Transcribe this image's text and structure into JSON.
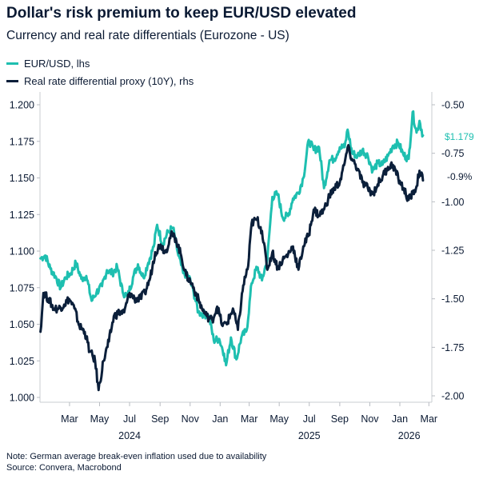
{
  "header": {
    "title": "Dollar's risk premium to keep EUR/USD elevated",
    "subtitle": "Currency and real rate differentials (Eurozone - US)"
  },
  "legend": [
    {
      "label": "EUR/USD, lhs",
      "color": "#1ebfb0"
    },
    {
      "label": "Real rate differential proxy (10Y), rhs",
      "color": "#0b1f3a"
    }
  ],
  "footer": {
    "note": "Note: German average break-even inflation used due to availability",
    "source": "Source: Convera, Macrobond"
  },
  "chart_data": {
    "type": "line",
    "left_axis": {
      "ticks": [
        "1.200",
        "1.175",
        "1.150",
        "1.125",
        "1.100",
        "1.075",
        "1.050",
        "1.025",
        "1.000"
      ],
      "range": [
        1.0,
        1.2
      ]
    },
    "right_axis": {
      "ticks": [
        "-0.50",
        "-0.75",
        "-1.00",
        "-1.25",
        "-1.50",
        "-1.75",
        "-2.00"
      ],
      "range": [
        -2.0,
        -0.5
      ]
    },
    "x_axis": {
      "month_ticks": [
        "Mar",
        "May",
        "Jul",
        "Sep",
        "Nov",
        "Jan",
        "Mar",
        "May",
        "Jul",
        "Sep",
        "Nov",
        "Jan",
        "Mar"
      ],
      "year_labels": [
        "2024",
        "2025",
        "2026"
      ]
    },
    "end_labels": {
      "eurusd": "$1.179",
      "real_rate": "-0.9%"
    },
    "series": [
      {
        "name": "EUR/USD, lhs",
        "axis": "left",
        "color": "#1ebfb0",
        "points": [
          [
            "2024-01-02",
            1.095
          ],
          [
            "2024-01-12",
            1.097
          ],
          [
            "2024-01-22",
            1.088
          ],
          [
            "2024-02-01",
            1.083
          ],
          [
            "2024-02-12",
            1.075
          ],
          [
            "2024-02-22",
            1.082
          ],
          [
            "2024-03-04",
            1.085
          ],
          [
            "2024-03-14",
            1.092
          ],
          [
            "2024-03-25",
            1.081
          ],
          [
            "2024-04-04",
            1.083
          ],
          [
            "2024-04-15",
            1.066
          ],
          [
            "2024-04-25",
            1.072
          ],
          [
            "2024-05-06",
            1.076
          ],
          [
            "2024-05-16",
            1.087
          ],
          [
            "2024-05-27",
            1.085
          ],
          [
            "2024-06-06",
            1.089
          ],
          [
            "2024-06-17",
            1.072
          ],
          [
            "2024-06-27",
            1.069
          ],
          [
            "2024-07-08",
            1.082
          ],
          [
            "2024-07-18",
            1.091
          ],
          [
            "2024-07-29",
            1.082
          ],
          [
            "2024-08-08",
            1.092
          ],
          [
            "2024-08-19",
            1.103
          ],
          [
            "2024-08-26",
            1.118
          ],
          [
            "2024-09-06",
            1.105
          ],
          [
            "2024-09-17",
            1.113
          ],
          [
            "2024-09-27",
            1.116
          ],
          [
            "2024-10-08",
            1.097
          ],
          [
            "2024-10-18",
            1.085
          ],
          [
            "2024-10-29",
            1.083
          ],
          [
            "2024-11-08",
            1.072
          ],
          [
            "2024-11-18",
            1.058
          ],
          [
            "2024-11-28",
            1.057
          ],
          [
            "2024-12-09",
            1.056
          ],
          [
            "2024-12-19",
            1.039
          ],
          [
            "2024-12-30",
            1.04
          ],
          [
            "2025-01-09",
            1.03
          ],
          [
            "2025-01-13",
            1.022
          ],
          [
            "2025-01-23",
            1.041
          ],
          [
            "2025-02-03",
            1.026
          ],
          [
            "2025-02-13",
            1.041
          ],
          [
            "2025-02-24",
            1.046
          ],
          [
            "2025-03-06",
            1.078
          ],
          [
            "2025-03-17",
            1.089
          ],
          [
            "2025-03-27",
            1.08
          ],
          [
            "2025-04-07",
            1.095
          ],
          [
            "2025-04-17",
            1.137
          ],
          [
            "2025-04-28",
            1.139
          ],
          [
            "2025-05-08",
            1.123
          ],
          [
            "2025-05-19",
            1.124
          ],
          [
            "2025-05-29",
            1.136
          ],
          [
            "2025-06-09",
            1.14
          ],
          [
            "2025-06-19",
            1.15
          ],
          [
            "2025-06-30",
            1.176
          ],
          [
            "2025-07-10",
            1.169
          ],
          [
            "2025-07-21",
            1.171
          ],
          [
            "2025-07-31",
            1.143
          ],
          [
            "2025-08-11",
            1.162
          ],
          [
            "2025-08-21",
            1.163
          ],
          [
            "2025-09-01",
            1.171
          ],
          [
            "2025-09-11",
            1.171
          ],
          [
            "2025-09-17",
            1.183
          ],
          [
            "2025-09-26",
            1.167
          ],
          [
            "2025-10-07",
            1.165
          ],
          [
            "2025-10-17",
            1.169
          ],
          [
            "2025-10-28",
            1.165
          ],
          [
            "2025-11-07",
            1.155
          ],
          [
            "2025-11-17",
            1.16
          ],
          [
            "2025-11-27",
            1.159
          ],
          [
            "2025-12-08",
            1.165
          ],
          [
            "2025-12-18",
            1.172
          ],
          [
            "2025-12-29",
            1.174
          ],
          [
            "2026-01-08",
            1.166
          ],
          [
            "2026-01-19",
            1.163
          ],
          [
            "2026-01-27",
            1.195
          ],
          [
            "2026-02-04",
            1.181
          ],
          [
            "2026-02-10",
            1.189
          ],
          [
            "2026-02-17",
            1.179
          ]
        ]
      },
      {
        "name": "Real rate differential proxy (10Y), rhs",
        "axis": "right",
        "color": "#0b1f3a",
        "points": [
          [
            "2024-01-02",
            -1.67
          ],
          [
            "2024-01-08",
            -1.47
          ],
          [
            "2024-01-18",
            -1.5
          ],
          [
            "2024-01-29",
            -1.55
          ],
          [
            "2024-02-08",
            -1.55
          ],
          [
            "2024-02-19",
            -1.53
          ],
          [
            "2024-02-29",
            -1.5
          ],
          [
            "2024-03-11",
            -1.55
          ],
          [
            "2024-03-21",
            -1.64
          ],
          [
            "2024-04-01",
            -1.67
          ],
          [
            "2024-04-11",
            -1.77
          ],
          [
            "2024-04-22",
            -1.82
          ],
          [
            "2024-04-29",
            -1.97
          ],
          [
            "2024-05-09",
            -1.82
          ],
          [
            "2024-05-20",
            -1.72
          ],
          [
            "2024-05-30",
            -1.59
          ],
          [
            "2024-06-10",
            -1.57
          ],
          [
            "2024-06-20",
            -1.57
          ],
          [
            "2024-07-01",
            -1.47
          ],
          [
            "2024-07-11",
            -1.5
          ],
          [
            "2024-07-22",
            -1.5
          ],
          [
            "2024-08-01",
            -1.47
          ],
          [
            "2024-08-12",
            -1.39
          ],
          [
            "2024-08-22",
            -1.26
          ],
          [
            "2024-09-02",
            -1.22
          ],
          [
            "2024-09-12",
            -1.26
          ],
          [
            "2024-09-23",
            -1.17
          ],
          [
            "2024-10-03",
            -1.19
          ],
          [
            "2024-10-14",
            -1.28
          ],
          [
            "2024-10-24",
            -1.38
          ],
          [
            "2024-11-04",
            -1.42
          ],
          [
            "2024-11-14",
            -1.48
          ],
          [
            "2024-11-25",
            -1.55
          ],
          [
            "2024-12-05",
            -1.59
          ],
          [
            "2024-12-16",
            -1.61
          ],
          [
            "2024-12-26",
            -1.54
          ],
          [
            "2025-01-06",
            -1.64
          ],
          [
            "2025-01-16",
            -1.62
          ],
          [
            "2025-01-27",
            -1.55
          ],
          [
            "2025-02-06",
            -1.66
          ],
          [
            "2025-02-17",
            -1.43
          ],
          [
            "2025-02-27",
            -1.33
          ],
          [
            "2025-03-06",
            -1.11
          ],
          [
            "2025-03-17",
            -1.09
          ],
          [
            "2025-03-27",
            -1.15
          ],
          [
            "2025-04-07",
            -1.35
          ],
          [
            "2025-04-17",
            -1.26
          ],
          [
            "2025-04-28",
            -1.34
          ],
          [
            "2025-05-08",
            -1.3
          ],
          [
            "2025-05-19",
            -1.27
          ],
          [
            "2025-05-29",
            -1.23
          ],
          [
            "2025-06-09",
            -1.35
          ],
          [
            "2025-06-19",
            -1.23
          ],
          [
            "2025-06-30",
            -1.17
          ],
          [
            "2025-07-10",
            -1.04
          ],
          [
            "2025-07-21",
            -1.07
          ],
          [
            "2025-07-31",
            -1.04
          ],
          [
            "2025-08-11",
            -0.97
          ],
          [
            "2025-08-21",
            -0.93
          ],
          [
            "2025-09-01",
            -0.9
          ],
          [
            "2025-09-11",
            -0.8
          ],
          [
            "2025-09-17",
            -0.72
          ],
          [
            "2025-09-26",
            -0.78
          ],
          [
            "2025-10-07",
            -0.83
          ],
          [
            "2025-10-17",
            -0.9
          ],
          [
            "2025-10-28",
            -0.93
          ],
          [
            "2025-11-07",
            -0.96
          ],
          [
            "2025-11-17",
            -0.91
          ],
          [
            "2025-11-27",
            -0.87
          ],
          [
            "2025-12-08",
            -0.82
          ],
          [
            "2025-12-18",
            -0.81
          ],
          [
            "2025-12-29",
            -0.88
          ],
          [
            "2026-01-08",
            -0.93
          ],
          [
            "2026-01-19",
            -0.99
          ],
          [
            "2026-01-27",
            -0.96
          ],
          [
            "2026-02-04",
            -0.92
          ],
          [
            "2026-02-10",
            -0.84
          ],
          [
            "2026-02-17",
            -0.89
          ]
        ]
      }
    ]
  }
}
